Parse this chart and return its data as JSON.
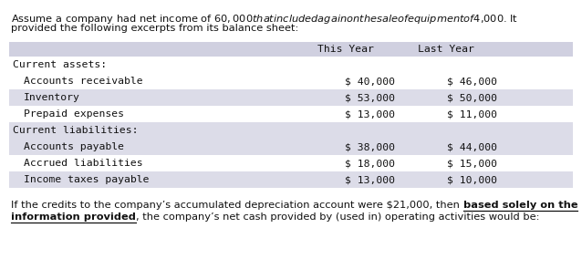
{
  "intro_line1": "Assume a company had net income of $60,000 that included a gain on the sale of equipment of $4,000. It",
  "intro_line2": "provided the following excerpts from its balance sheet:",
  "header_col1": "This Year",
  "header_col2": "Last Year",
  "header_bg": "#d0d0e0",
  "shading_color": "#dcdce8",
  "table_rows": [
    {
      "label": "Current assets:",
      "val1": "",
      "val2": "",
      "indent": false,
      "shaded": false
    },
    {
      "label": "Accounts receivable",
      "val1": "$ 40,000",
      "val2": "$ 46,000",
      "indent": true,
      "shaded": false
    },
    {
      "label": "Inventory",
      "val1": "$ 53,000",
      "val2": "$ 50,000",
      "indent": true,
      "shaded": true
    },
    {
      "label": "Prepaid expenses",
      "val1": "$ 13,000",
      "val2": "$ 11,000",
      "indent": true,
      "shaded": false
    },
    {
      "label": "Current liabilities:",
      "val1": "",
      "val2": "",
      "indent": false,
      "shaded": true
    },
    {
      "label": "Accounts payable",
      "val1": "$ 38,000",
      "val2": "$ 44,000",
      "indent": true,
      "shaded": true
    },
    {
      "label": "Accrued liabilities",
      "val1": "$ 18,000",
      "val2": "$ 15,000",
      "indent": true,
      "shaded": false
    },
    {
      "label": "Income taxes payable",
      "val1": "$ 13,000",
      "val2": "$ 10,000",
      "indent": true,
      "shaded": true
    }
  ],
  "footer_line1_pre": "If the credits to the company’s accumulated depreciation account were $21,000, then ",
  "footer_line1_bold": "based solely on the",
  "footer_line2_bold": "information provided",
  "footer_line2_post": ", the company’s net cash provided by (used in) operating activities would be:",
  "font_size_intro": 8.2,
  "font_size_header": 8.2,
  "font_size_table": 8.2,
  "font_size_footer": 8.2,
  "bg_color": "#ffffff",
  "text_color": "#111111",
  "mono_font": "DejaVu Sans Mono",
  "sans_font": "DejaVu Sans"
}
